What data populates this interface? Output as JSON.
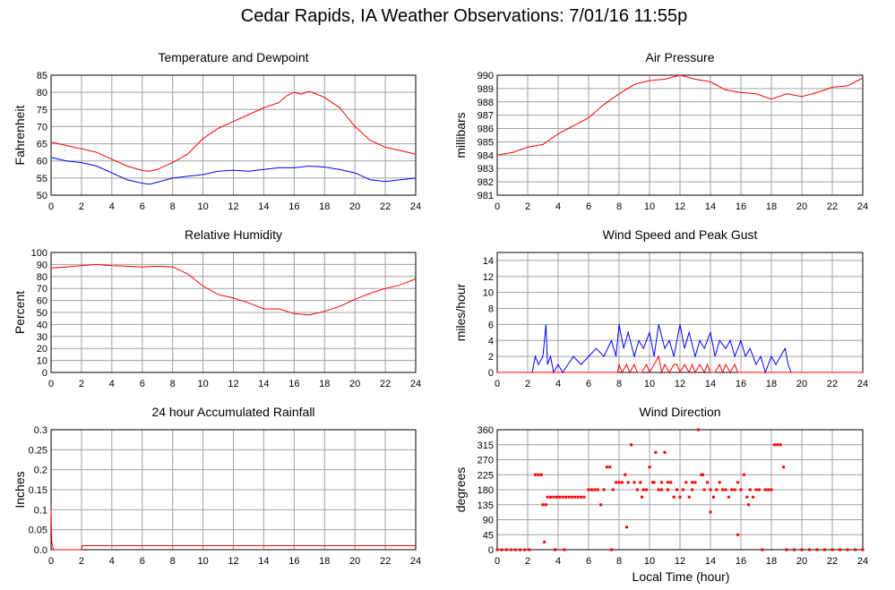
{
  "page": {
    "title": "Cedar Rapids, IA Weather Observations: 7/01/16 11:55p",
    "xaxis_label": "Local Time (hour)"
  },
  "colors": {
    "red": "#ff0000",
    "blue": "#0000ff",
    "grid": "#a0a0a0",
    "frame": "#000000"
  },
  "chart_data": [
    {
      "id": "temp",
      "type": "line",
      "title": "Temperature and Dewpoint",
      "ylabel": "Fahrenheit",
      "xlim": [
        0,
        24
      ],
      "ylim": [
        50,
        85
      ],
      "xticks": [
        0,
        2,
        4,
        6,
        8,
        10,
        12,
        14,
        16,
        18,
        20,
        22,
        24
      ],
      "yticks": [
        50,
        55,
        60,
        65,
        70,
        75,
        80,
        85
      ],
      "grid": true,
      "series": [
        {
          "color": "red",
          "x": [
            0,
            1,
            2,
            3,
            4,
            5,
            6,
            6.5,
            7,
            8,
            9,
            10,
            11,
            12,
            13,
            14,
            15,
            15.5,
            16,
            16.5,
            17,
            17.5,
            18,
            19,
            20,
            21,
            22,
            23,
            24
          ],
          "y": [
            65.5,
            64.5,
            63.5,
            62.5,
            60.5,
            58.5,
            57.2,
            57,
            57.5,
            59.5,
            62,
            66.5,
            69.5,
            71.5,
            73.5,
            75.5,
            77,
            79,
            80,
            79.5,
            80.3,
            79.5,
            78.5,
            75.5,
            70,
            66,
            64,
            63,
            62
          ]
        },
        {
          "color": "blue",
          "x": [
            0,
            1,
            2,
            3,
            4,
            5,
            6,
            6.5,
            7,
            8,
            9,
            10,
            11,
            12,
            13,
            14,
            15,
            16,
            17,
            18,
            19,
            20,
            21,
            22,
            23,
            24
          ],
          "y": [
            61,
            60,
            59.5,
            58.5,
            56.5,
            54.5,
            53.5,
            53.2,
            53.8,
            55,
            55.5,
            56,
            57,
            57.3,
            57,
            57.5,
            58,
            58,
            58.5,
            58.2,
            57.5,
            56.5,
            54.5,
            54,
            54.5,
            55
          ]
        }
      ]
    },
    {
      "id": "pres",
      "type": "line",
      "title": "Air Pressure",
      "ylabel": "millibars",
      "xlim": [
        0,
        24
      ],
      "ylim": [
        981,
        990
      ],
      "xticks": [
        0,
        2,
        4,
        6,
        8,
        10,
        12,
        14,
        16,
        18,
        20,
        22,
        24
      ],
      "yticks": [
        981,
        982,
        983,
        984,
        985,
        986,
        987,
        988,
        989,
        990
      ],
      "grid": true,
      "series": [
        {
          "color": "red",
          "x": [
            0,
            1,
            2,
            3,
            4,
            5,
            6,
            7,
            8,
            9,
            10,
            11,
            12,
            13,
            14,
            15,
            16,
            17,
            18,
            19,
            20,
            21,
            22,
            23,
            24
          ],
          "y": [
            984,
            984.2,
            984.6,
            984.8,
            985.6,
            986.2,
            986.8,
            987.8,
            988.6,
            989.3,
            989.6,
            989.7,
            990,
            989.7,
            989.5,
            988.9,
            988.7,
            988.6,
            988.2,
            988.6,
            988.4,
            988.7,
            989.1,
            989.2,
            989.8
          ]
        }
      ]
    },
    {
      "id": "rh",
      "type": "line",
      "title": "Relative Humidity",
      "ylabel": "Percent",
      "xlim": [
        0,
        24
      ],
      "ylim": [
        0,
        100
      ],
      "xticks": [
        0,
        2,
        4,
        6,
        8,
        10,
        12,
        14,
        16,
        18,
        20,
        22,
        24
      ],
      "yticks": [
        0,
        10,
        20,
        30,
        40,
        50,
        60,
        70,
        80,
        90,
        100
      ],
      "grid": true,
      "series": [
        {
          "color": "red",
          "x": [
            0,
            1,
            2,
            3,
            4,
            5,
            6,
            7,
            8,
            9,
            10,
            11,
            12,
            13,
            14,
            15,
            16,
            17,
            18,
            19,
            20,
            21,
            22,
            23,
            24
          ],
          "y": [
            87,
            88,
            89,
            90,
            89,
            88.5,
            88,
            88.5,
            88,
            82,
            72,
            65,
            62,
            58,
            53,
            53,
            49,
            48,
            51,
            55,
            61,
            66,
            70,
            73,
            78
          ]
        }
      ]
    },
    {
      "id": "wind",
      "type": "line",
      "title": "Wind Speed and Peak Gust",
      "ylabel": "miles/hour",
      "xlim": [
        0,
        24
      ],
      "ylim": [
        0,
        15
      ],
      "xticks": [
        0,
        2,
        4,
        6,
        8,
        10,
        12,
        14,
        16,
        18,
        20,
        22,
        24
      ],
      "yticks": [
        0,
        2,
        4,
        6,
        8,
        10,
        12,
        14
      ],
      "grid": true,
      "series": [
        {
          "color": "blue",
          "x": [
            0,
            2.3,
            2.5,
            2.7,
            3,
            3.2,
            3.3,
            3.5,
            3.7,
            4,
            4.3,
            5,
            5.5,
            6,
            6.5,
            7,
            7.5,
            7.8,
            8,
            8.3,
            8.6,
            9,
            9.3,
            9.6,
            10,
            10.3,
            10.6,
            11,
            11.3,
            11.6,
            12,
            12.3,
            12.6,
            13,
            13.3,
            13.6,
            14,
            14.3,
            14.6,
            15,
            15.3,
            15.6,
            16,
            16.3,
            16.6,
            17,
            17.3,
            17.6,
            18,
            18.3,
            18.6,
            18.9,
            19.1,
            19.3,
            24
          ],
          "y": [
            0,
            0,
            2,
            1,
            2,
            6,
            1,
            2,
            0,
            1,
            0,
            2,
            1,
            2,
            3,
            2,
            4,
            2,
            6,
            3,
            5,
            2,
            4,
            3,
            5,
            2,
            6,
            3,
            4,
            2,
            6,
            3,
            5,
            2,
            4,
            3,
            5,
            2,
            4,
            3,
            4,
            2,
            4,
            2,
            3,
            1,
            2,
            0,
            2,
            1,
            2,
            3,
            1,
            0,
            0
          ]
        },
        {
          "color": "red",
          "x": [
            0,
            7.9,
            8,
            8.2,
            8.5,
            8.7,
            9,
            9.2,
            9.5,
            9.8,
            10,
            10.3,
            10.6,
            10.8,
            11,
            11.3,
            11.6,
            11.8,
            12,
            12.3,
            12.6,
            12.8,
            13,
            13.3,
            13.6,
            13.8,
            14,
            14.3,
            14.6,
            14.8,
            15,
            15.3,
            15.6,
            15.8,
            16,
            24
          ],
          "y": [
            0,
            0,
            1,
            0,
            1,
            0,
            1,
            0,
            0,
            1,
            0,
            1,
            2,
            0,
            1,
            0,
            1,
            1,
            0,
            1,
            0,
            1,
            0,
            1,
            0,
            1,
            0,
            0,
            1,
            0,
            1,
            0,
            1,
            0,
            0,
            0
          ]
        }
      ]
    },
    {
      "id": "rain",
      "type": "line",
      "title": "24 hour Accumulated Rainfall",
      "ylabel": "Inches",
      "xlim": [
        0,
        24
      ],
      "ylim": [
        0,
        0.3
      ],
      "xticks": [
        0,
        2,
        4,
        6,
        8,
        10,
        12,
        14,
        16,
        18,
        20,
        22,
        24
      ],
      "yticks": [
        0,
        0.05,
        0.1,
        0.15,
        0.2,
        0.25,
        0.3
      ],
      "yticklabels": [
        "0.0",
        "0.05",
        "0.1",
        "0.15",
        "0.2",
        "0.25",
        "0.3"
      ],
      "grid": true,
      "series": [
        {
          "color": "red",
          "x": [
            0,
            0.05,
            0.15,
            0.2,
            2,
            2.05,
            24
          ],
          "y": [
            0.1,
            0.02,
            0,
            0,
            0,
            0.01,
            0.01
          ]
        }
      ]
    },
    {
      "id": "wdir",
      "type": "scatter",
      "title": "Wind Direction",
      "ylabel": "degrees",
      "xlabel": "Local Time (hour)",
      "xlim": [
        0,
        24
      ],
      "ylim": [
        0,
        360
      ],
      "xticks": [
        0,
        2,
        4,
        6,
        8,
        10,
        12,
        14,
        16,
        18,
        20,
        22,
        24
      ],
      "yticks": [
        0,
        45,
        90,
        135,
        180,
        225,
        270,
        315,
        360
      ],
      "grid": true,
      "series": [
        {
          "color": "red",
          "x": [
            0,
            0.3,
            0.6,
            0.9,
            1.2,
            1.5,
            1.8,
            2.1,
            2.5,
            2.7,
            2.9,
            3.0,
            3.1,
            3.2,
            3.3,
            3.5,
            3.7,
            3.9,
            4.1,
            4.3,
            4.5,
            4.7,
            4.9,
            5.1,
            5.3,
            5.5,
            5.7,
            6.0,
            6.2,
            6.4,
            6.6,
            6.8,
            7.0,
            7.2,
            7.4,
            7.6,
            7.8,
            8.0,
            8.2,
            8.4,
            8.6,
            8.8,
            9.0,
            9.2,
            9.4,
            9.6,
            9.8,
            10.0,
            10.2,
            10.4,
            10.6,
            10.8,
            11.0,
            11.2,
            11.4,
            11.6,
            11.8,
            12.0,
            12.2,
            12.4,
            12.6,
            12.8,
            13.0,
            13.2,
            13.4,
            13.6,
            13.8,
            14.0,
            14.2,
            14.4,
            14.6,
            14.8,
            15.0,
            15.2,
            15.4,
            15.6,
            15.8,
            16.0,
            16.2,
            16.4,
            16.6,
            16.8,
            17.0,
            17.2,
            17.4,
            17.6,
            17.8,
            18.0,
            18.2,
            18.4,
            18.6,
            18.8,
            19.0,
            19.5,
            20,
            20.5,
            21,
            21.5,
            22,
            22.5,
            23,
            23.5,
            24,
            8.5,
            9.5,
            10.3,
            10.8,
            11.2,
            13.5,
            15.8,
            4.4,
            3.8,
            7.5,
            12.8,
            14.0,
            16.5
          ],
          "y": [
            0,
            0,
            0,
            0,
            0,
            0,
            0,
            0,
            225,
            225,
            225,
            135,
            23,
            135,
            158,
            158,
            158,
            158,
            158,
            158,
            158,
            158,
            158,
            158,
            158,
            158,
            158,
            180,
            180,
            180,
            180,
            135,
            180,
            248,
            248,
            180,
            202,
            202,
            202,
            225,
            202,
            315,
            202,
            180,
            202,
            180,
            180,
            248,
            202,
            292,
            180,
            202,
            292,
            180,
            202,
            158,
            180,
            158,
            180,
            202,
            158,
            180,
            202,
            360,
            225,
            180,
            202,
            180,
            158,
            180,
            202,
            180,
            180,
            158,
            180,
            180,
            45,
            180,
            225,
            158,
            180,
            158,
            180,
            180,
            0,
            180,
            180,
            180,
            315,
            315,
            315,
            248,
            0,
            0,
            0,
            0,
            0,
            0,
            0,
            0,
            0,
            0,
            0,
            68,
            158,
            202,
            180,
            202,
            225,
            202,
            0,
            0,
            0,
            202,
            113,
            135
          ]
        }
      ]
    }
  ]
}
